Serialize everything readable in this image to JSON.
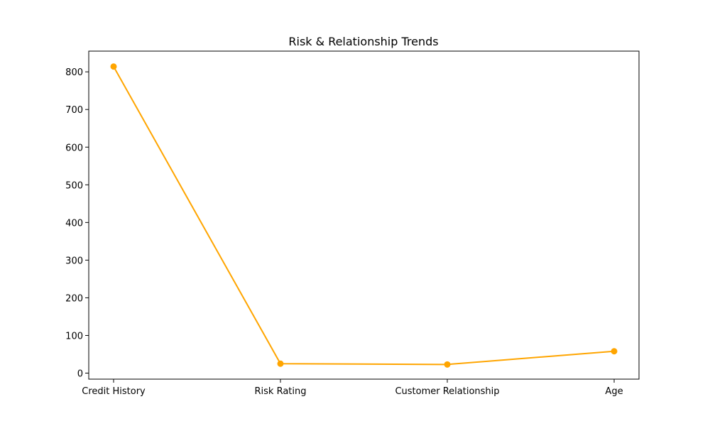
{
  "chart_data": {
    "type": "line",
    "title": "Risk & Relationship Trends",
    "xlabel": "",
    "ylabel": "",
    "categories": [
      "Credit History",
      "Risk Rating",
      "Customer Relationship",
      "Age"
    ],
    "series": [
      {
        "values": [
          814,
          25,
          23,
          58
        ],
        "color": "#FFA500",
        "marker": "circle"
      }
    ],
    "ylim": [
      -16,
      855
    ],
    "yticks": [
      0,
      100,
      200,
      300,
      400,
      500,
      600,
      700,
      800
    ],
    "grid": false,
    "legend": "none"
  }
}
